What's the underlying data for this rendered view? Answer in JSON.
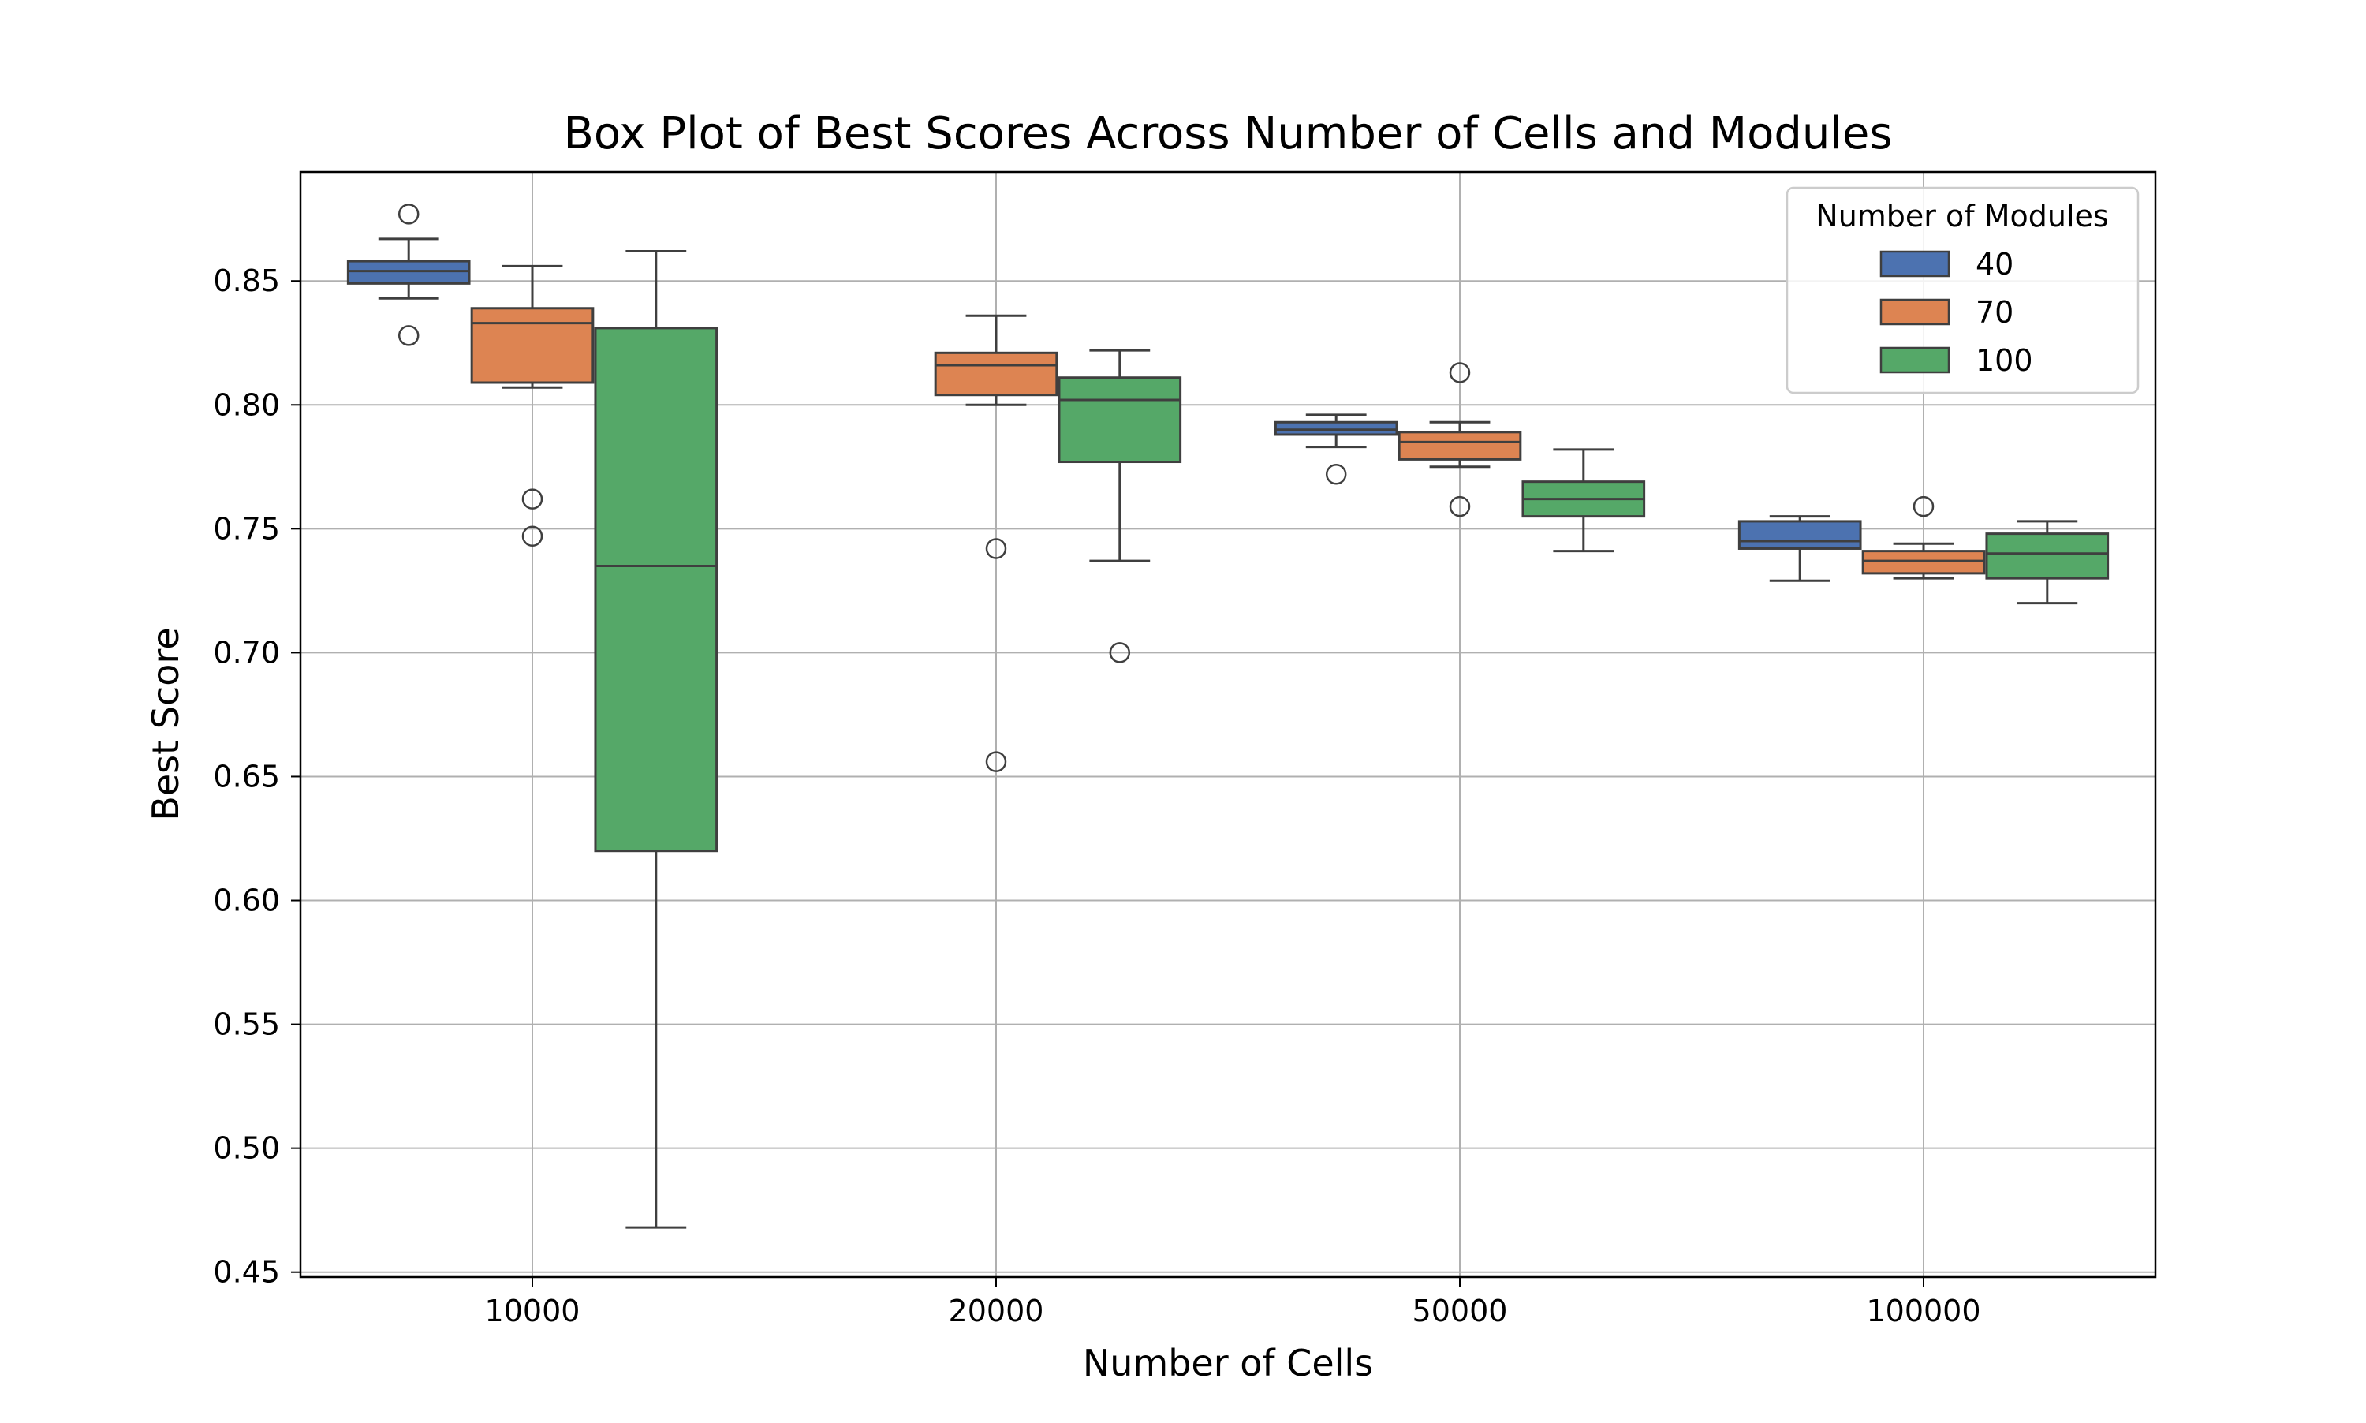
{
  "chart_data": {
    "type": "box",
    "title": "Box Plot of Best Scores Across Number of Cells and Modules",
    "xlabel": "Number of Cells",
    "ylabel": "Best Score",
    "categories": [
      "10000",
      "20000",
      "50000",
      "100000"
    ],
    "ylim": [
      0.448,
      0.894
    ],
    "yticks": [
      0.45,
      0.5,
      0.55,
      0.6,
      0.65,
      0.7,
      0.75,
      0.8,
      0.85
    ],
    "ytick_labels": [
      "0.45",
      "0.50",
      "0.55",
      "0.60",
      "0.65",
      "0.70",
      "0.75",
      "0.80",
      "0.85"
    ],
    "grid": true,
    "legend": {
      "title": "Number of Modules",
      "placement": "top-right"
    },
    "series": [
      {
        "name": "40",
        "color": "#4c72b0",
        "boxes": [
          {
            "category": "10000",
            "whisker_low": 0.843,
            "q1": 0.849,
            "median": 0.854,
            "q3": 0.858,
            "whisker_high": 0.867,
            "outliers": [
              0.877,
              0.828
            ]
          },
          {
            "category": "20000",
            "empty": true
          },
          {
            "category": "50000",
            "whisker_low": 0.783,
            "q1": 0.788,
            "median": 0.79,
            "q3": 0.793,
            "whisker_high": 0.796,
            "outliers": [
              0.772
            ]
          },
          {
            "category": "100000",
            "whisker_low": 0.729,
            "q1": 0.742,
            "median": 0.745,
            "q3": 0.753,
            "whisker_high": 0.755,
            "outliers": []
          }
        ]
      },
      {
        "name": "70",
        "color": "#dd8452",
        "boxes": [
          {
            "category": "10000",
            "whisker_low": 0.807,
            "q1": 0.809,
            "median": 0.833,
            "q3": 0.839,
            "whisker_high": 0.856,
            "outliers": [
              0.762,
              0.747
            ]
          },
          {
            "category": "20000",
            "whisker_low": 0.8,
            "q1": 0.804,
            "median": 0.816,
            "q3": 0.821,
            "whisker_high": 0.836,
            "outliers": [
              0.742,
              0.656
            ]
          },
          {
            "category": "50000",
            "whisker_low": 0.775,
            "q1": 0.778,
            "median": 0.785,
            "q3": 0.789,
            "whisker_high": 0.793,
            "outliers": [
              0.813,
              0.759
            ]
          },
          {
            "category": "100000",
            "whisker_low": 0.73,
            "q1": 0.732,
            "median": 0.737,
            "q3": 0.741,
            "whisker_high": 0.744,
            "outliers": [
              0.759
            ]
          }
        ]
      },
      {
        "name": "100",
        "color": "#55a868",
        "boxes": [
          {
            "category": "10000",
            "whisker_low": 0.468,
            "q1": 0.62,
            "median": 0.735,
            "q3": 0.831,
            "whisker_high": 0.862,
            "outliers": []
          },
          {
            "category": "20000",
            "whisker_low": 0.737,
            "q1": 0.777,
            "median": 0.802,
            "q3": 0.811,
            "whisker_high": 0.822,
            "outliers": [
              0.7
            ]
          },
          {
            "category": "50000",
            "whisker_low": 0.741,
            "q1": 0.755,
            "median": 0.762,
            "q3": 0.769,
            "whisker_high": 0.782,
            "outliers": []
          },
          {
            "category": "100000",
            "whisker_low": 0.72,
            "q1": 0.73,
            "median": 0.74,
            "q3": 0.748,
            "whisker_high": 0.753,
            "outliers": []
          }
        ]
      }
    ]
  }
}
